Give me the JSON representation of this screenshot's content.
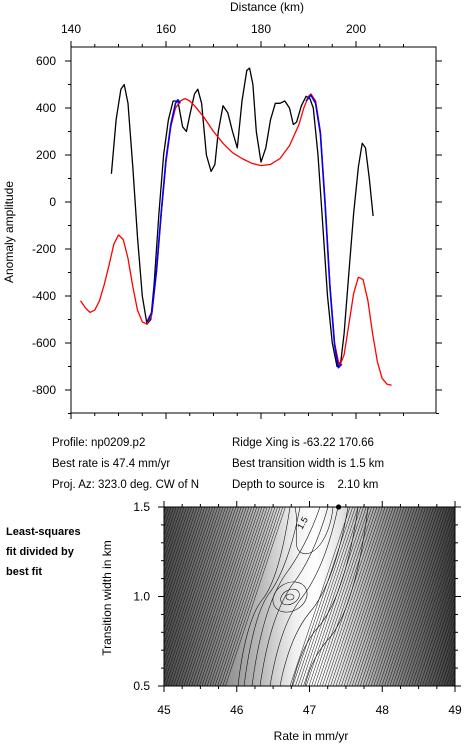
{
  "chart_data": [
    {
      "type": "line",
      "title": "",
      "xlabel": "Distance (km)",
      "ylabel": "Anomaly amplitude",
      "xlim": [
        140,
        210
      ],
      "ylim": [
        -900,
        650
      ],
      "x_ticks": [
        "140",
        "160",
        "180",
        "200"
      ],
      "y_ticks": [
        "600",
        "400",
        "200",
        "0",
        "-200",
        "-400",
        "-600",
        "-800"
      ],
      "series": [
        {
          "color": "#000000",
          "points": [
            [
              148.5,
              120
            ],
            [
              149.5,
              350
            ],
            [
              150.5,
              480
            ],
            [
              151.2,
              500
            ],
            [
              152.0,
              420
            ],
            [
              153.0,
              150
            ],
            [
              154.0,
              -150
            ],
            [
              155.0,
              -400
            ],
            [
              156.0,
              -520
            ],
            [
              156.8,
              -500
            ],
            [
              157.5,
              -350
            ],
            [
              158.5,
              -50
            ],
            [
              159.5,
              200
            ],
            [
              160.5,
              350
            ],
            [
              161.5,
              430
            ],
            [
              162.5,
              430
            ],
            [
              163.5,
              320
            ],
            [
              164.3,
              300
            ],
            [
              165.0,
              370
            ],
            [
              166.0,
              460
            ],
            [
              166.7,
              480
            ],
            [
              167.5,
              420
            ],
            [
              168.5,
              200
            ],
            [
              169.5,
              130
            ],
            [
              170.3,
              160
            ],
            [
              171.0,
              300
            ],
            [
              172.0,
              410
            ],
            [
              173.0,
              380
            ],
            [
              174.0,
              300
            ],
            [
              175.0,
              230
            ],
            [
              176.0,
              430
            ],
            [
              177.0,
              560
            ],
            [
              177.6,
              570
            ],
            [
              178.3,
              500
            ],
            [
              179.0,
              300
            ],
            [
              180.0,
              170
            ],
            [
              181.0,
              230
            ],
            [
              182.0,
              350
            ],
            [
              183.0,
              420
            ],
            [
              184.0,
              420
            ],
            [
              185.0,
              430
            ],
            [
              186.0,
              400
            ],
            [
              186.8,
              330
            ],
            [
              187.5,
              340
            ],
            [
              188.5,
              410
            ],
            [
              189.5,
              450
            ],
            [
              190.3,
              440
            ],
            [
              191.0,
              400
            ],
            [
              192.0,
              200
            ],
            [
              193.0,
              -100
            ],
            [
              194.0,
              -400
            ],
            [
              195.0,
              -600
            ],
            [
              196.0,
              -700
            ],
            [
              196.8,
              -680
            ],
            [
              197.5,
              -560
            ],
            [
              198.5,
              -300
            ],
            [
              199.5,
              -50
            ],
            [
              200.5,
              150
            ],
            [
              201.3,
              250
            ],
            [
              202.0,
              230
            ],
            [
              202.8,
              100
            ],
            [
              203.6,
              -60
            ]
          ]
        },
        {
          "color": "#ff0000",
          "points": [
            [
              142.0,
              -420
            ],
            [
              143.0,
              -450
            ],
            [
              144.0,
              -470
            ],
            [
              145.0,
              -460
            ],
            [
              146.0,
              -420
            ],
            [
              147.0,
              -350
            ],
            [
              148.0,
              -270
            ],
            [
              149.0,
              -180
            ],
            [
              150.0,
              -140
            ],
            [
              151.0,
              -160
            ],
            [
              152.0,
              -240
            ],
            [
              153.0,
              -360
            ],
            [
              154.0,
              -460
            ],
            [
              155.0,
              -510
            ],
            [
              156.0,
              -520
            ],
            [
              157.0,
              -480
            ],
            [
              158.0,
              -300
            ],
            [
              159.0,
              -50
            ],
            [
              160.0,
              170
            ],
            [
              161.0,
              320
            ],
            [
              162.0,
              400
            ],
            [
              163.0,
              430
            ],
            [
              164.0,
              440
            ],
            [
              165.0,
              430
            ],
            [
              166.0,
              410
            ],
            [
              168.0,
              360
            ],
            [
              170.0,
              300
            ],
            [
              172.0,
              250
            ],
            [
              174.0,
              210
            ],
            [
              176.0,
              185
            ],
            [
              178.0,
              165
            ],
            [
              180.0,
              155
            ],
            [
              182.0,
              160
            ],
            [
              184.0,
              185
            ],
            [
              186.0,
              240
            ],
            [
              188.0,
              330
            ],
            [
              189.0,
              400
            ],
            [
              190.0,
              450
            ],
            [
              190.5,
              460
            ],
            [
              191.5,
              430
            ],
            [
              192.5,
              300
            ],
            [
              193.5,
              0
            ],
            [
              194.5,
              -350
            ],
            [
              195.5,
              -600
            ],
            [
              196.5,
              -700
            ],
            [
              197.5,
              -650
            ],
            [
              198.5,
              -520
            ],
            [
              199.5,
              -390
            ],
            [
              200.5,
              -320
            ],
            [
              201.5,
              -330
            ],
            [
              202.5,
              -420
            ],
            [
              203.5,
              -560
            ],
            [
              204.5,
              -680
            ],
            [
              205.5,
              -750
            ],
            [
              206.5,
              -775
            ],
            [
              207.5,
              -780
            ]
          ]
        },
        {
          "color": "#0000ff",
          "points": [
            [
              156.0,
              -510
            ],
            [
              157.0,
              -470
            ],
            [
              158.0,
              -290
            ],
            [
              159.0,
              -40
            ],
            [
              160.0,
              180
            ],
            [
              161.0,
              330
            ],
            [
              162.0,
              420
            ],
            [
              162.5,
              435
            ],
            [
              163.0,
              420
            ]
          ]
        },
        {
          "color": "#0000ff",
          "points": [
            [
              189.5,
              430
            ],
            [
              190.5,
              455
            ],
            [
              191.5,
              420
            ],
            [
              192.5,
              290
            ],
            [
              193.5,
              -10
            ],
            [
              194.5,
              -360
            ],
            [
              195.5,
              -610
            ],
            [
              196.3,
              -705
            ],
            [
              197.0,
              -690
            ]
          ]
        }
      ]
    },
    {
      "type": "heatmap",
      "title": "",
      "xlabel": "Rate in mm/yr",
      "ylabel": "Transition width in km",
      "xlim": [
        45,
        49
      ],
      "ylim": [
        0.5,
        1.5
      ],
      "x_ticks": [
        "45",
        "46",
        "47",
        "48",
        "49"
      ],
      "y_ticks": [
        "1.5",
        "1.0",
        "0.5"
      ],
      "contour_label": "1.5",
      "best_fit_point": [
        47.4,
        1.5
      ]
    }
  ],
  "info": {
    "profile": "Profile: np0209.p2",
    "best_rate": "Best rate is 47.4 mm/yr",
    "proj_az": "Proj. Az: 323.0 deg. CW of N",
    "ridge_xing": "Ridge Xing is -63.22 170.66",
    "best_width": "Best transition width is 1.5 km",
    "depth": "Depth to source is    2.10 km"
  },
  "side_label": [
    "Least-squares",
    "fit divided by",
    "best fit"
  ]
}
